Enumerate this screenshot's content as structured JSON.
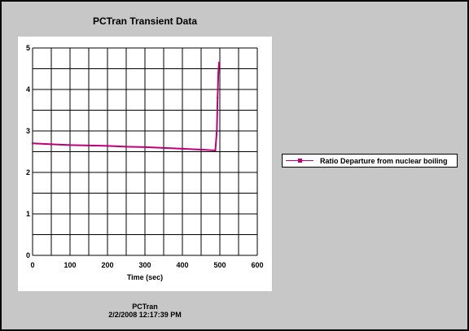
{
  "window": {
    "title": "PCTran Transient Data",
    "footer_app": "PCTran",
    "footer_timestamp": "2/2/2008 12:17:39 PM"
  },
  "colors": {
    "series": "#c0007a",
    "panel": "#c7c7c7",
    "plot_bg": "#ffffff"
  },
  "chart_data": {
    "type": "line",
    "title": "PCTran Transient Data",
    "xlabel": "Time (sec)",
    "ylabel": "",
    "xlim": [
      0,
      600
    ],
    "ylim": [
      0,
      5
    ],
    "xticks": [
      0,
      100,
      200,
      300,
      400,
      500,
      600
    ],
    "yticks": [
      0,
      1,
      2,
      3,
      4,
      5
    ],
    "grid": true,
    "legend": "right",
    "series": [
      {
        "name": "Ratio Departure from nuclear boiling",
        "x": [
          0,
          50,
          100,
          150,
          200,
          250,
          300,
          350,
          400,
          450,
          488,
          492,
          494,
          496,
          498
        ],
        "y": [
          2.7,
          2.68,
          2.66,
          2.65,
          2.64,
          2.62,
          2.61,
          2.59,
          2.57,
          2.55,
          2.53,
          3.0,
          3.8,
          4.4,
          4.65
        ]
      }
    ]
  }
}
